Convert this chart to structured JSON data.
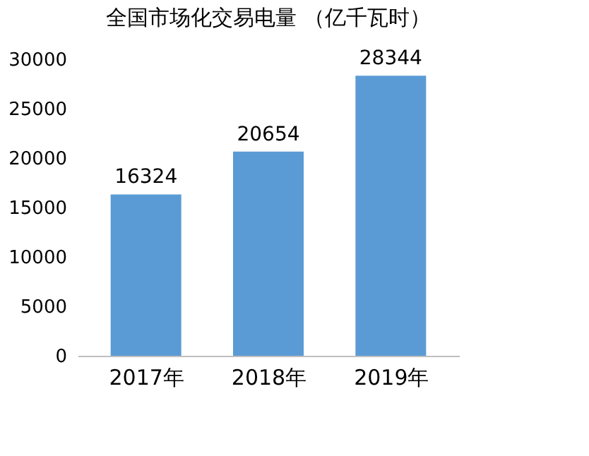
{
  "chart_data": {
    "type": "bar",
    "title": "全国市场化交易电量 （亿千瓦时）",
    "categories": [
      "2017年",
      "2018年",
      "2019年"
    ],
    "values": [
      16324,
      20654,
      28344
    ],
    "color": "#5b9bd5",
    "ylim": [
      0,
      30000
    ],
    "yticks": [
      0,
      5000,
      10000,
      15000,
      20000,
      25000,
      30000
    ],
    "data_labels": true,
    "grid": false
  }
}
